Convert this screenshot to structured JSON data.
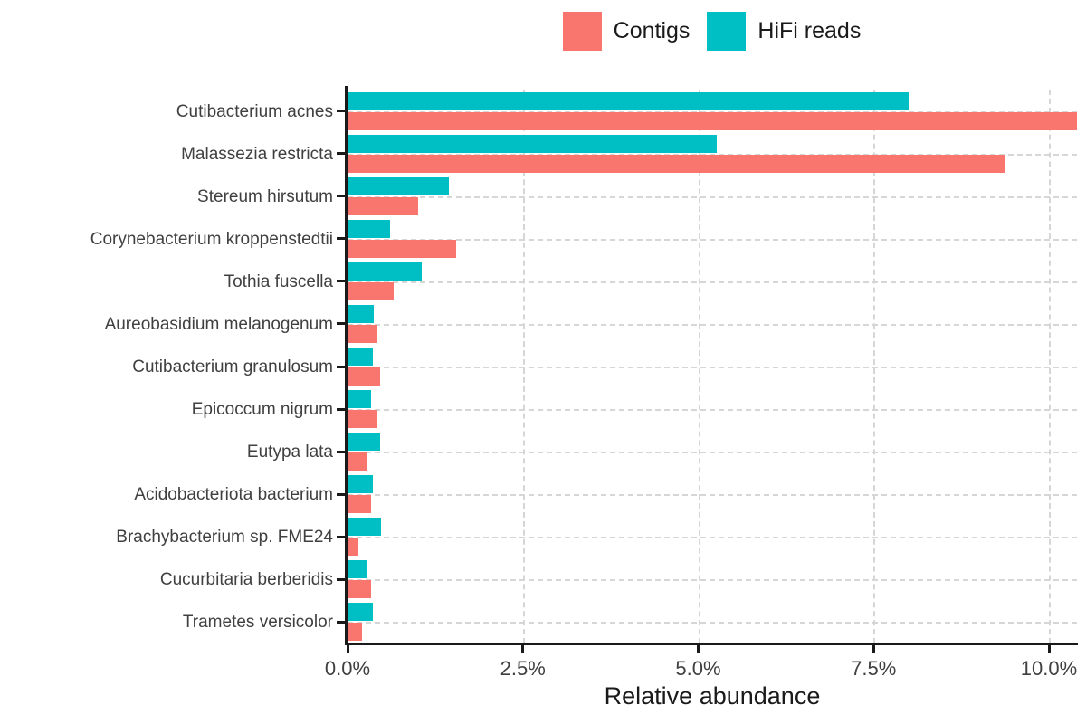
{
  "colors": {
    "contigs": "#F8766D",
    "hifi": "#00BFC4",
    "grid": "#d6d6d6",
    "axis": "#1a1a1a",
    "tick_label": "#404040"
  },
  "chart_data": {
    "type": "bar",
    "orientation": "horizontal",
    "title": "",
    "xlabel": "Relative abundance",
    "ylabel": "",
    "legend_position": "top-center",
    "grid": "dashed",
    "xlim": [
      0,
      10.4
    ],
    "x_tick_values": [
      0,
      2.5,
      5,
      7.5,
      10
    ],
    "x_tick_labels": [
      "0.0%",
      "2.5%",
      "5.0%",
      "7.5%",
      "10.0%"
    ],
    "categories": [
      "Cutibacterium acnes",
      "Malassezia restricta",
      "Stereum hirsutum",
      "Corynebacterium kroppenstedtii",
      "Tothia fuscella",
      "Aureobasidium melanogenum",
      "Cutibacterium granulosum",
      "Epicoccum nigrum",
      "Eutypa lata",
      "Acidobacteriota bacterium",
      "Brachybacterium sp. FME24",
      "Cucurbitaria berberidis",
      "Trametes versicolor"
    ],
    "series": [
      {
        "name": "Contigs",
        "color": "#F8766D",
        "values": [
          10.4,
          9.38,
          1.01,
          1.55,
          0.66,
          0.43,
          0.46,
          0.42,
          0.27,
          0.33,
          0.15,
          0.34,
          0.2
        ]
      },
      {
        "name": "HiFi reads",
        "color": "#00BFC4",
        "values": [
          8.0,
          5.27,
          1.45,
          0.61,
          1.06,
          0.38,
          0.36,
          0.34,
          0.46,
          0.36,
          0.48,
          0.27,
          0.36
        ]
      }
    ]
  }
}
